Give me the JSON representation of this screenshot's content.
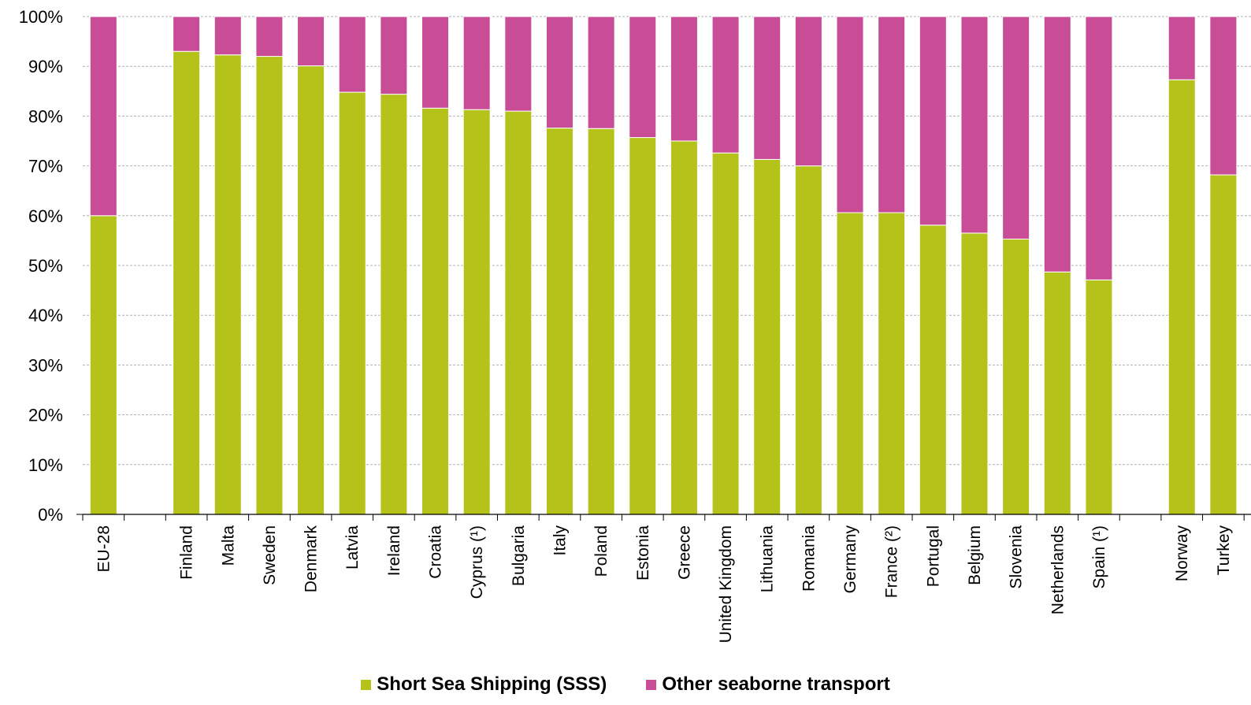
{
  "chart_data": {
    "type": "bar",
    "stacked": true,
    "categories": [
      "EU-28",
      "",
      "Finland",
      "Malta",
      "Sweden",
      "Denmark",
      "Latvia",
      "Ireland",
      "Croatia",
      "Cyprus (¹)",
      "Bulgaria",
      "Italy",
      "Poland",
      "Estonia",
      "Greece",
      "United Kingdom",
      "Lithuania",
      "Romania",
      "Germany",
      "France (²)",
      "Portugal",
      "Belgium",
      "Slovenia",
      "Netherlands",
      "Spain (¹)",
      "",
      "Norway",
      "Turkey"
    ],
    "series": [
      {
        "name": "Short Sea Shipping (SSS)",
        "color": "#b5c21a",
        "values": [
          60,
          null,
          93,
          92.3,
          92,
          90.1,
          84.8,
          84.4,
          81.6,
          81.3,
          81,
          77.6,
          77.5,
          75.7,
          75,
          72.6,
          71.3,
          70,
          60.6,
          60.6,
          58.1,
          56.5,
          55.3,
          48.7,
          47.1,
          null,
          87.3,
          68.2
        ]
      },
      {
        "name": "Other seaborne transport",
        "color": "#c84c96",
        "values": [
          40,
          null,
          7,
          7.7,
          8,
          9.9,
          15.2,
          15.6,
          18.4,
          18.7,
          19,
          22.4,
          22.5,
          24.3,
          25,
          27.4,
          28.7,
          30,
          39.4,
          39.4,
          41.9,
          43.5,
          44.7,
          51.3,
          52.9,
          null,
          12.7,
          31.8
        ]
      }
    ],
    "ylim": [
      0,
      100
    ],
    "yticks": [
      "0%",
      "10%",
      "20%",
      "30%",
      "40%",
      "50%",
      "60%",
      "70%",
      "80%",
      "90%",
      "100%"
    ],
    "grid": true,
    "legend_position": "bottom"
  }
}
